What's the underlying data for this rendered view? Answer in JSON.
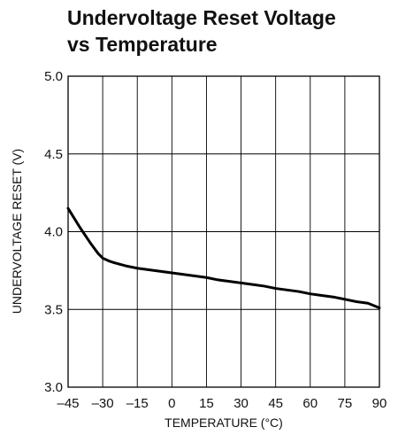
{
  "chart_data": {
    "type": "line",
    "title_lines": [
      "Undervoltage Reset Voltage",
      "vs Temperature"
    ],
    "xlabel": "TEMPERATURE (°C)",
    "ylabel": "UNDERVOLTAGE RESET (V)",
    "xlim": [
      -45,
      90
    ],
    "ylim": [
      3.0,
      5.0
    ],
    "x_ticks": [
      -45,
      -30,
      -15,
      0,
      15,
      30,
      45,
      60,
      75,
      90
    ],
    "x_tick_labels": [
      "–45",
      "–30",
      "–15",
      "0",
      "15",
      "30",
      "45",
      "60",
      "75",
      "90"
    ],
    "y_ticks": [
      3.0,
      3.5,
      4.0,
      4.5,
      5.0
    ],
    "y_tick_labels": [
      "3.0",
      "3.5",
      "4.0",
      "4.5",
      "5.0"
    ],
    "grid": true,
    "line_color": "#000000",
    "series": [
      {
        "x": [
          -45,
          -40,
          -35,
          -32,
          -30,
          -27,
          -25,
          -20,
          -15,
          -10,
          -5,
          0,
          5,
          10,
          15,
          20,
          25,
          30,
          35,
          40,
          45,
          50,
          55,
          60,
          65,
          70,
          75,
          80,
          85,
          90
        ],
        "values": [
          4.15,
          4.03,
          3.92,
          3.86,
          3.83,
          3.81,
          3.8,
          3.78,
          3.765,
          3.755,
          3.745,
          3.735,
          3.725,
          3.715,
          3.705,
          3.69,
          3.68,
          3.67,
          3.66,
          3.65,
          3.635,
          3.625,
          3.615,
          3.6,
          3.59,
          3.58,
          3.565,
          3.55,
          3.54,
          3.51
        ]
      }
    ]
  }
}
